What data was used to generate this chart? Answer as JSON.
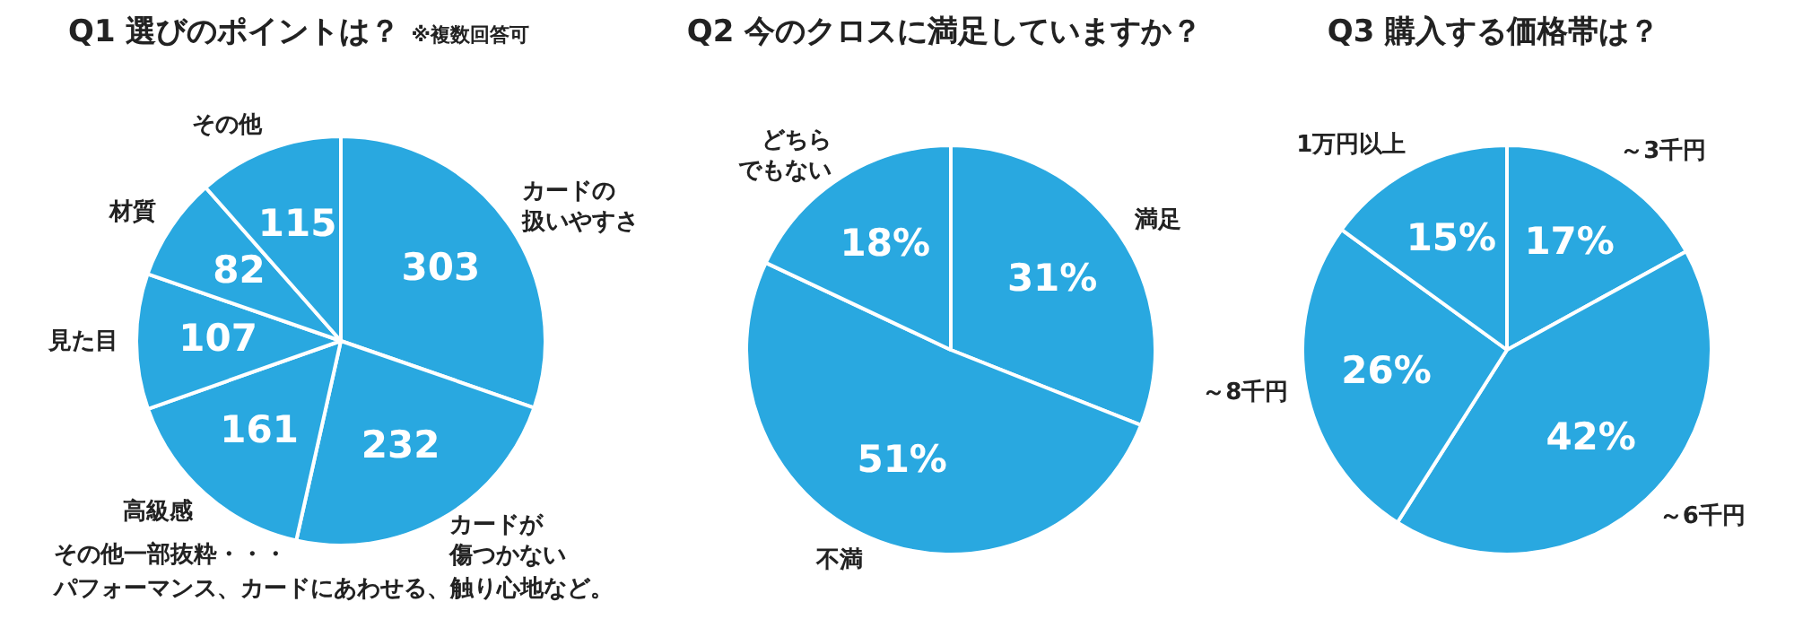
{
  "chart_data": [
    {
      "type": "pie",
      "title": "Q1 選びのポイントは？",
      "subtitle": "※複数回答可",
      "categories": [
        "カードの扱いやすさ",
        "カードが傷つかない",
        "高級感",
        "見た目",
        "材質",
        "その他"
      ],
      "values": [
        303,
        232,
        161,
        107,
        82,
        115
      ],
      "colors": [
        "#29a8e0",
        "#29a8e0",
        "#29a8e0",
        "#29a8e0",
        "#29a8e0",
        "#29a8e0"
      ],
      "data_labels": true,
      "legend": false,
      "annotations": [
        "その他一部抜粋・・・",
        "パフォーマンス、カードにあわせる、触り心地など。"
      ]
    },
    {
      "type": "pie",
      "title": "Q2 今のクロスに満足していますか？",
      "categories": [
        "満足",
        "不満",
        "どちらでもない"
      ],
      "values": [
        31,
        51,
        18
      ],
      "colors": [
        "#29a8e0",
        "#29a8e0",
        "#29a8e0"
      ],
      "value_labels": [
        "31%",
        "51%",
        "18%"
      ],
      "legend": false
    },
    {
      "type": "pie",
      "title": "Q3 購入する価格帯は？",
      "categories": [
        "～3千円",
        "～6千円",
        "～8千円",
        "1万円以上"
      ],
      "values": [
        17,
        42,
        26,
        15
      ],
      "colors": [
        "#29a8e0",
        "#29a8e0",
        "#29a8e0",
        "#29a8e0"
      ],
      "value_labels": [
        "17%",
        "42%",
        "26%",
        "15%"
      ],
      "legend": false
    }
  ]
}
